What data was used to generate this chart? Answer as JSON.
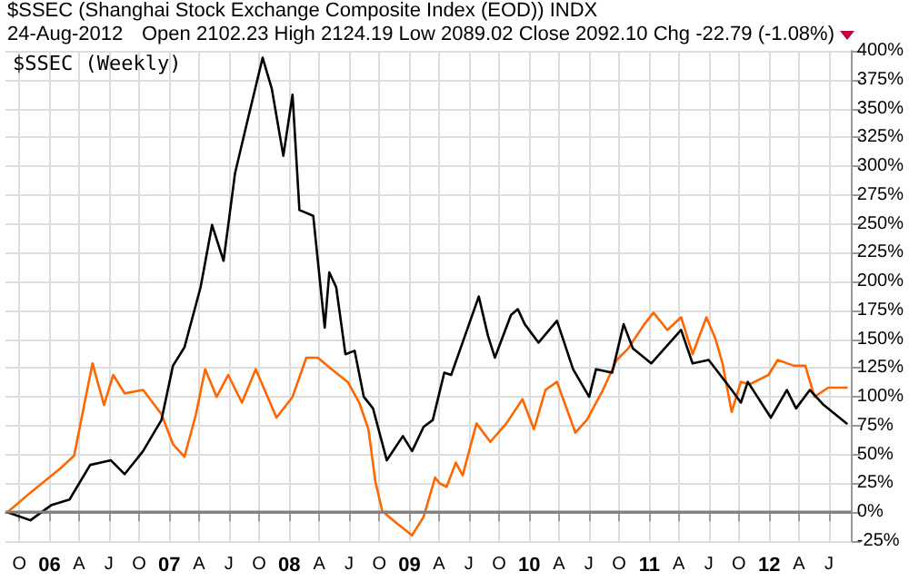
{
  "chart_data": {
    "type": "line",
    "title": "$SSEC (Shanghai Stock Exchange Composite Index (EOD)) INDX",
    "subtitle": "24-Aug-2012",
    "annotations": [
      "Open 2102.23 High 2124.19 Low 2089.02 Close 2092.10 Chg -22.79 (-1.08%)"
    ],
    "series": [
      {
        "name": "$SSEC (Weekly)",
        "color": "#000000",
        "x": [
          "2005-08-26",
          "2005-11-04",
          "2006-01-06",
          "2006-03-03",
          "2006-05-05",
          "2006-07-07",
          "2006-08-18",
          "2006-10-13",
          "2006-12-08",
          "2007-01-12",
          "2007-02-16",
          "2007-04-06",
          "2007-05-11",
          "2007-06-15",
          "2007-07-20",
          "2007-08-24",
          "2007-10-12",
          "2007-11-09",
          "2007-12-14",
          "2008-01-11",
          "2008-02-01",
          "2008-03-14",
          "2008-04-18",
          "2008-05-02",
          "2008-05-23",
          "2008-06-20",
          "2008-07-18",
          "2008-08-15",
          "2008-09-12",
          "2008-10-24",
          "2008-12-12",
          "2009-01-09",
          "2009-02-13",
          "2009-03-13",
          "2009-04-17",
          "2009-05-08",
          "2009-07-31",
          "2009-08-28",
          "2009-09-18",
          "2009-11-06",
          "2009-11-27",
          "2009-12-18",
          "2010-01-29",
          "2010-03-26",
          "2010-05-14",
          "2010-07-02",
          "2010-07-23",
          "2010-09-10",
          "2010-10-15",
          "2010-11-12",
          "2011-01-07",
          "2011-04-08",
          "2011-05-13",
          "2011-07-01",
          "2011-09-09",
          "2011-10-07",
          "2011-10-28",
          "2012-01-06",
          "2012-02-24",
          "2012-03-23",
          "2012-05-04",
          "2012-06-15",
          "2012-08-24"
        ],
        "values": [
          0,
          -7,
          6,
          11,
          41,
          45,
          33,
          53,
          80,
          127,
          143,
          195,
          249,
          218,
          294,
          336,
          394,
          367,
          309,
          362,
          262,
          257,
          160,
          208,
          195,
          137,
          140,
          100,
          90,
          45,
          66,
          53,
          74,
          80,
          121,
          119,
          187,
          153,
          134,
          171,
          176,
          163,
          147,
          166,
          124,
          100,
          124,
          121,
          163,
          142,
          129,
          158,
          129,
          132,
          106,
          95,
          113,
          82,
          106,
          90,
          106,
          93,
          77
        ]
      },
      {
        "color": "#ff6600",
        "x": [
          "2005-08-26",
          "2005-11-04",
          "2006-02-03",
          "2006-03-17",
          "2006-05-12",
          "2006-06-16",
          "2006-07-14",
          "2006-08-18",
          "2006-10-13",
          "2006-12-08",
          "2007-01-12",
          "2007-02-16",
          "2007-03-23",
          "2007-04-20",
          "2007-05-25",
          "2007-06-29",
          "2007-08-10",
          "2007-09-21",
          "2007-11-23",
          "2008-01-11",
          "2008-02-22",
          "2008-03-28",
          "2008-05-09",
          "2008-06-27",
          "2008-08-01",
          "2008-08-29",
          "2008-09-19",
          "2008-10-10",
          "2008-11-21",
          "2009-01-09",
          "2009-02-13",
          "2009-03-20",
          "2009-04-03",
          "2009-04-24",
          "2009-05-22",
          "2009-06-12",
          "2009-07-24",
          "2009-09-04",
          "2009-10-23",
          "2009-12-11",
          "2010-01-15",
          "2010-02-19",
          "2010-03-26",
          "2010-05-21",
          "2010-06-25",
          "2010-08-13",
          "2010-09-24",
          "2010-10-29",
          "2010-12-17",
          "2011-01-14",
          "2011-02-25",
          "2011-04-08",
          "2011-05-13",
          "2011-06-24",
          "2011-07-22",
          "2011-08-12",
          "2011-09-09",
          "2011-10-07",
          "2011-11-04",
          "2011-12-30",
          "2012-01-27",
          "2012-03-16",
          "2012-04-20",
          "2012-05-18",
          "2012-06-29",
          "2012-08-24"
        ],
        "values": [
          0,
          17,
          38,
          49,
          129,
          93,
          119,
          103,
          106,
          85,
          59,
          48,
          85,
          124,
          100,
          119,
          95,
          124,
          82,
          100,
          134,
          134,
          124,
          113,
          95,
          72,
          27,
          1,
          -9,
          -20,
          -4,
          30,
          25,
          22,
          43,
          32,
          77,
          61,
          77,
          98,
          72,
          106,
          113,
          69,
          80,
          106,
          132,
          142,
          163,
          173,
          158,
          169,
          137,
          169,
          150,
          129,
          87,
          113,
          111,
          119,
          132,
          127,
          127,
          100,
          108,
          108
        ]
      }
    ],
    "xlim": [
      "2005-08-20",
      "2012-09-08"
    ],
    "xticks": [
      {
        "value": "2005-10-01",
        "label": "O"
      },
      {
        "value": "2006-01-01",
        "label": "06"
      },
      {
        "value": "2006-04-01",
        "label": "A"
      },
      {
        "value": "2006-07-01",
        "label": "J"
      },
      {
        "value": "2006-10-01",
        "label": "O"
      },
      {
        "value": "2007-01-01",
        "label": "07"
      },
      {
        "value": "2007-04-01",
        "label": "A"
      },
      {
        "value": "2007-07-01",
        "label": "J"
      },
      {
        "value": "2007-10-01",
        "label": "O"
      },
      {
        "value": "2008-01-01",
        "label": "08"
      },
      {
        "value": "2008-04-01",
        "label": "A"
      },
      {
        "value": "2008-07-01",
        "label": "J"
      },
      {
        "value": "2008-10-01",
        "label": "O"
      },
      {
        "value": "2009-01-01",
        "label": "09"
      },
      {
        "value": "2009-04-01",
        "label": "A"
      },
      {
        "value": "2009-07-01",
        "label": "J"
      },
      {
        "value": "2009-10-01",
        "label": "O"
      },
      {
        "value": "2010-01-01",
        "label": "10"
      },
      {
        "value": "2010-04-01",
        "label": "A"
      },
      {
        "value": "2010-07-01",
        "label": "J"
      },
      {
        "value": "2010-10-01",
        "label": "O"
      },
      {
        "value": "2011-01-01",
        "label": "11"
      },
      {
        "value": "2011-04-01",
        "label": "A"
      },
      {
        "value": "2011-07-01",
        "label": "J"
      },
      {
        "value": "2011-10-01",
        "label": "O"
      },
      {
        "value": "2012-01-01",
        "label": "12"
      },
      {
        "value": "2012-04-01",
        "label": "A"
      },
      {
        "value": "2012-07-01",
        "label": "J"
      }
    ],
    "ylim": [
      -25,
      400
    ],
    "yticks": [
      {
        "value": -25,
        "label": "-25%"
      },
      {
        "value": 0,
        "label": "0%"
      },
      {
        "value": 25,
        "label": "25%"
      },
      {
        "value": 50,
        "label": "50%"
      },
      {
        "value": 75,
        "label": "75%"
      },
      {
        "value": 100,
        "label": "100%"
      },
      {
        "value": 125,
        "label": "125%"
      },
      {
        "value": 150,
        "label": "150%"
      },
      {
        "value": 175,
        "label": "175%"
      },
      {
        "value": 200,
        "label": "200%"
      },
      {
        "value": 225,
        "label": "225%"
      },
      {
        "value": 250,
        "label": "250%"
      },
      {
        "value": 275,
        "label": "275%"
      },
      {
        "value": 300,
        "label": "300%"
      },
      {
        "value": 325,
        "label": "325%"
      },
      {
        "value": 350,
        "label": "350%"
      },
      {
        "value": 375,
        "label": "375%"
      },
      {
        "value": 400,
        "label": "400%"
      }
    ],
    "ref_lines": [
      {
        "axis": "y",
        "value": 0,
        "color": "#808080"
      }
    ],
    "grid": true,
    "legend": "top left",
    "marker": "none",
    "line_style": "solid"
  }
}
